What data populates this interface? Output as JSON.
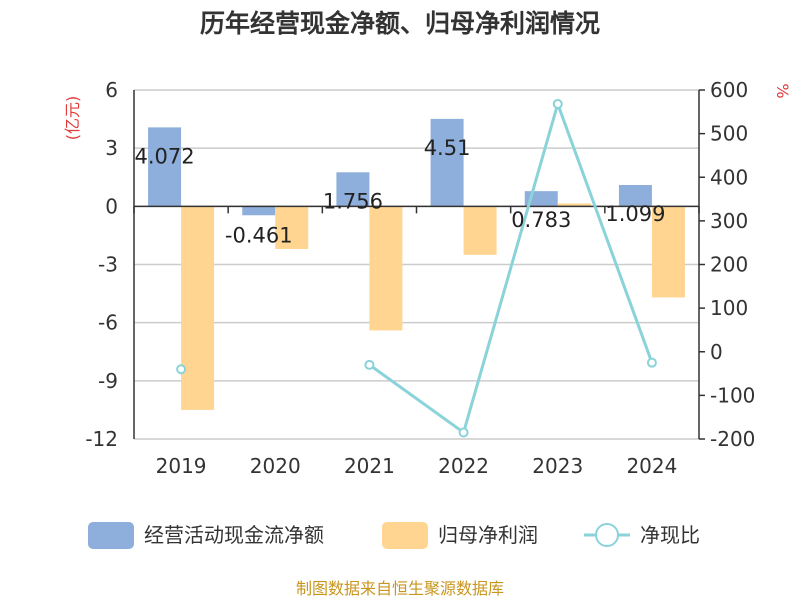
{
  "chart_data": {
    "type": "bar",
    "title": "历年经营现金净额、归母净利润情况",
    "categories": [
      "2019",
      "2020",
      "2021",
      "2022",
      "2023",
      "2024"
    ],
    "series": [
      {
        "name": "经营活动现金流净额",
        "type": "bar",
        "axis": "left",
        "color": "#8eaedb",
        "values": [
          4.072,
          -0.461,
          1.756,
          4.51,
          0.783,
          1.099
        ]
      },
      {
        "name": "归母净利润",
        "type": "bar",
        "axis": "left",
        "color": "#ffd591",
        "values": [
          -10.5,
          -2.2,
          -6.4,
          -2.5,
          0.15,
          -4.7
        ]
      },
      {
        "name": "净现比",
        "type": "line",
        "axis": "right",
        "color": "#8ad3d9",
        "values": [
          -40,
          null,
          -30,
          -185,
          568,
          -25
        ]
      }
    ],
    "data_labels": [
      "4.072",
      "-0.461",
      "1.756",
      "4.51",
      "0.783",
      "1.099"
    ],
    "y_left": {
      "label": "(亿元)",
      "range": [
        -12,
        6
      ],
      "ticks": [
        6,
        3,
        0,
        -3,
        -6,
        -9,
        -12
      ]
    },
    "y_right": {
      "label": "%",
      "range": [
        -200,
        600
      ],
      "ticks": [
        600,
        500,
        400,
        300,
        200,
        100,
        0,
        -100,
        -200
      ]
    },
    "grid": true,
    "legend_position": "bottom"
  },
  "source": "制图数据来自恒生聚源数据库"
}
